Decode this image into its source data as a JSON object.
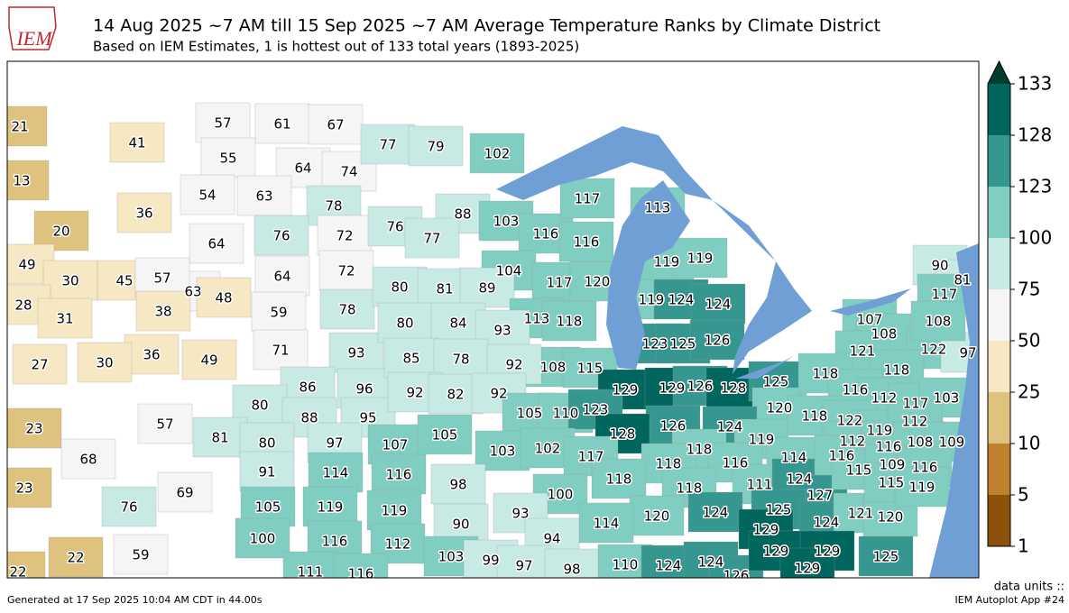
{
  "logo": "IEM",
  "title": "14 Aug 2025 ~7 AM till 15 Sep 2025 ~7 AM Average Temperature Ranks by Climate District",
  "subtitle": "Based on IEM Estimates, 1 is hottest out of 133 total years (1893-2025)",
  "map": {
    "ranks": [
      21,
      41,
      13,
      36,
      20,
      57,
      61,
      67,
      55,
      64,
      74,
      54,
      63,
      78,
      64,
      76,
      72,
      72,
      64,
      63,
      48,
      59,
      78,
      49,
      30,
      45,
      57,
      28,
      31,
      38,
      36,
      27,
      30,
      49,
      71,
      93,
      86,
      96,
      80,
      88,
      95,
      23,
      57,
      81,
      68,
      69,
      76,
      23,
      80,
      97,
      107,
      91,
      114,
      116,
      105,
      119,
      119,
      100,
      116,
      112,
      111,
      116,
      22,
      59,
      22,
      77,
      79,
      102,
      76,
      88,
      77,
      103,
      116,
      116,
      117,
      113,
      104,
      117,
      120,
      80,
      81,
      89,
      119,
      119,
      119,
      124,
      124,
      113,
      118,
      80,
      84,
      93,
      123,
      125,
      126,
      108,
      115,
      85,
      78,
      92,
      129,
      129,
      126,
      128,
      125,
      92,
      82,
      92,
      105,
      110,
      123,
      120,
      126,
      124,
      128,
      105,
      103,
      102,
      117,
      118,
      119,
      118,
      116,
      114,
      118,
      100,
      98,
      111,
      124,
      127,
      118,
      125,
      124,
      120,
      114,
      90,
      93,
      129,
      124,
      121,
      120,
      94,
      103,
      99,
      97,
      98,
      110,
      124,
      124,
      126,
      129,
      129,
      129,
      125,
      107,
      108,
      121,
      122,
      97,
      90,
      81,
      117,
      108,
      118,
      118,
      116,
      112,
      117,
      103,
      118,
      122,
      119,
      112,
      112,
      116,
      108,
      109,
      116,
      115,
      109,
      116,
      115,
      119
    ]
  },
  "colorbar": {
    "ticks": [
      1,
      5,
      10,
      25,
      50,
      75,
      100,
      123,
      128,
      133
    ],
    "colors": [
      "#8c510a",
      "#bf812d",
      "#dfc27d",
      "#f6e8c3",
      "#f5f5f5",
      "#c7eae5",
      "#80cdc1",
      "#35978f",
      "#01665e"
    ],
    "over_color": "#003c30"
  },
  "units_label": "data units ::",
  "footer_left": "Generated at 17 Sep 2025 10:04 AM CDT in 44.00s",
  "footer_right": "IEM Autoplot App #24"
}
